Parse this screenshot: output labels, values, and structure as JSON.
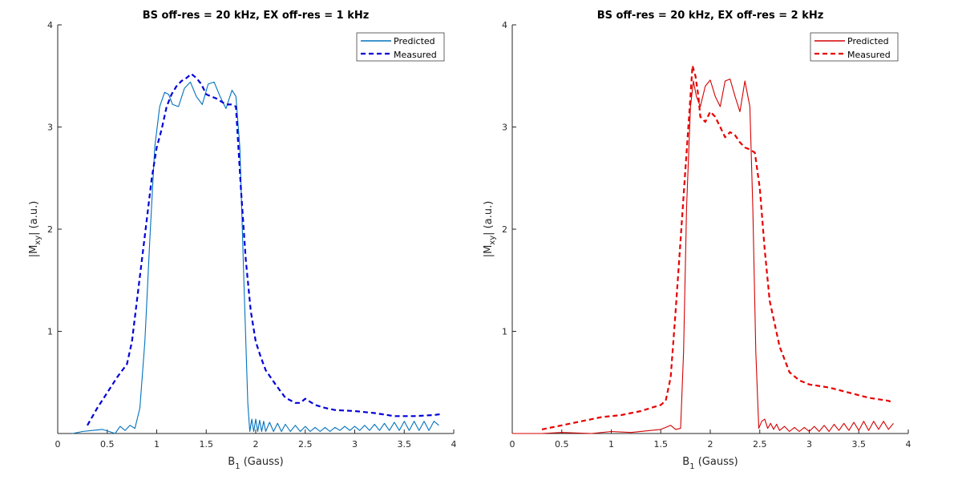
{
  "chart_data": [
    {
      "type": "line",
      "title": "BS off-res = 20 kHz, EX off-res = 1 kHz",
      "xlabel_main": "B",
      "xlabel_sub": "1",
      "xlabel_rest": " (Gauss)",
      "ylabel_main": "|M",
      "ylabel_sub": "xy",
      "ylabel_rest": "| (a.u.)",
      "xlim": [
        0,
        4
      ],
      "ylim": [
        0,
        4
      ],
      "xticks": [
        0,
        0.5,
        1,
        1.5,
        2,
        2.5,
        3,
        3.5,
        4
      ],
      "xtick_labels": [
        "0",
        "0.5",
        "1",
        "1.5",
        "2",
        "2.5",
        "3",
        "3.5",
        "4"
      ],
      "yticks": [
        1,
        2,
        3,
        4
      ],
      "ytick_labels": [
        "1",
        "2",
        "3",
        "4"
      ],
      "grid": false,
      "legend_position": "top-right",
      "series": [
        {
          "name": "Predicted",
          "color": "#0072bd",
          "style": "solid",
          "x": [
            0.15,
            0.25,
            0.35,
            0.45,
            0.52,
            0.58,
            0.63,
            0.68,
            0.73,
            0.78,
            0.83,
            0.88,
            0.93,
            0.98,
            1.03,
            1.08,
            1.12,
            1.16,
            1.22,
            1.28,
            1.34,
            1.4,
            1.46,
            1.52,
            1.58,
            1.64,
            1.7,
            1.76,
            1.8,
            1.84,
            1.88,
            1.92,
            1.94,
            1.96,
            1.98,
            2.0,
            2.02,
            2.04,
            2.06,
            2.08,
            2.1,
            2.14,
            2.18,
            2.22,
            2.26,
            2.3,
            2.35,
            2.4,
            2.45,
            2.5,
            2.55,
            2.6,
            2.65,
            2.7,
            2.75,
            2.8,
            2.85,
            2.9,
            2.95,
            3.0,
            3.05,
            3.1,
            3.15,
            3.2,
            3.25,
            3.3,
            3.35,
            3.4,
            3.45,
            3.5,
            3.55,
            3.6,
            3.65,
            3.7,
            3.75,
            3.8,
            3.85
          ],
          "y": [
            0.0,
            0.02,
            0.03,
            0.04,
            0.02,
            0.0,
            0.07,
            0.03,
            0.08,
            0.05,
            0.25,
            0.9,
            1.9,
            2.8,
            3.2,
            3.34,
            3.32,
            3.22,
            3.2,
            3.38,
            3.44,
            3.3,
            3.22,
            3.42,
            3.44,
            3.3,
            3.18,
            3.36,
            3.3,
            2.8,
            1.5,
            0.3,
            0.02,
            0.14,
            0.02,
            0.14,
            0.02,
            0.13,
            0.02,
            0.12,
            0.02,
            0.11,
            0.02,
            0.1,
            0.02,
            0.09,
            0.02,
            0.08,
            0.02,
            0.07,
            0.02,
            0.06,
            0.02,
            0.06,
            0.02,
            0.06,
            0.03,
            0.07,
            0.03,
            0.07,
            0.03,
            0.08,
            0.03,
            0.09,
            0.03,
            0.1,
            0.03,
            0.11,
            0.03,
            0.12,
            0.03,
            0.12,
            0.03,
            0.12,
            0.03,
            0.12,
            0.08
          ]
        },
        {
          "name": "Measured",
          "color": "#0000d8",
          "style": "dashed",
          "x": [
            0.3,
            0.4,
            0.5,
            0.6,
            0.7,
            0.75,
            0.8,
            0.85,
            0.9,
            0.95,
            1.0,
            1.05,
            1.1,
            1.15,
            1.2,
            1.25,
            1.3,
            1.35,
            1.4,
            1.45,
            1.5,
            1.55,
            1.6,
            1.65,
            1.7,
            1.75,
            1.8,
            1.85,
            1.9,
            1.95,
            2.0,
            2.05,
            2.1,
            2.2,
            2.3,
            2.4,
            2.45,
            2.5,
            2.55,
            2.6,
            2.7,
            2.8,
            3.0,
            3.2,
            3.4,
            3.6,
            3.8,
            3.87
          ],
          "y": [
            0.08,
            0.25,
            0.4,
            0.55,
            0.68,
            0.9,
            1.3,
            1.7,
            2.1,
            2.5,
            2.8,
            2.98,
            3.2,
            3.32,
            3.4,
            3.45,
            3.48,
            3.52,
            3.48,
            3.42,
            3.32,
            3.3,
            3.28,
            3.25,
            3.22,
            3.22,
            3.2,
            2.4,
            1.7,
            1.2,
            0.9,
            0.75,
            0.62,
            0.48,
            0.35,
            0.3,
            0.3,
            0.34,
            0.31,
            0.28,
            0.25,
            0.23,
            0.22,
            0.2,
            0.17,
            0.17,
            0.18,
            0.19
          ]
        }
      ]
    },
    {
      "type": "line",
      "title": "BS off-res = 20 kHz, EX off-res = 2 kHz",
      "xlabel_main": "B",
      "xlabel_sub": "1",
      "xlabel_rest": " (Gauss)",
      "ylabel_main": "|M",
      "ylabel_sub": "xy",
      "ylabel_rest": "| (a.u.)",
      "xlim": [
        0,
        4
      ],
      "ylim": [
        0,
        4
      ],
      "xticks": [
        0,
        0.5,
        1,
        1.5,
        2,
        2.5,
        3,
        3.5,
        4
      ],
      "xtick_labels": [
        "0",
        "0.5",
        "1",
        "1.5",
        "2",
        "2.5",
        "3",
        "3.5",
        "4"
      ],
      "yticks": [
        1,
        2,
        3,
        4
      ],
      "ytick_labels": [
        "1",
        "2",
        "3",
        "4"
      ],
      "grid": false,
      "legend_position": "top-right",
      "series": [
        {
          "name": "Predicted",
          "color": "#d40000",
          "style": "solid",
          "x": [
            0.0,
            0.3,
            0.5,
            0.8,
            1.0,
            1.2,
            1.4,
            1.5,
            1.55,
            1.6,
            1.65,
            1.7,
            1.73,
            1.76,
            1.8,
            1.83,
            1.86,
            1.9,
            1.95,
            2.0,
            2.05,
            2.1,
            2.15,
            2.2,
            2.25,
            2.3,
            2.35,
            2.4,
            2.43,
            2.46,
            2.49,
            2.52,
            2.55,
            2.58,
            2.61,
            2.64,
            2.67,
            2.7,
            2.75,
            2.8,
            2.85,
            2.9,
            2.95,
            3.0,
            3.05,
            3.1,
            3.15,
            3.2,
            3.25,
            3.3,
            3.35,
            3.4,
            3.45,
            3.5,
            3.55,
            3.6,
            3.65,
            3.7,
            3.75,
            3.8,
            3.85
          ],
          "y": [
            0.0,
            0.0,
            0.01,
            0.0,
            0.02,
            0.01,
            0.03,
            0.04,
            0.06,
            0.08,
            0.04,
            0.05,
            0.8,
            2.2,
            3.2,
            3.45,
            3.3,
            3.2,
            3.4,
            3.46,
            3.3,
            3.2,
            3.45,
            3.47,
            3.3,
            3.15,
            3.45,
            3.2,
            2.2,
            0.8,
            0.05,
            0.12,
            0.14,
            0.05,
            0.1,
            0.04,
            0.09,
            0.03,
            0.07,
            0.02,
            0.06,
            0.02,
            0.06,
            0.02,
            0.07,
            0.02,
            0.08,
            0.02,
            0.09,
            0.03,
            0.1,
            0.03,
            0.11,
            0.03,
            0.12,
            0.03,
            0.12,
            0.04,
            0.12,
            0.04,
            0.1
          ]
        },
        {
          "name": "Measured",
          "color": "#e80000",
          "style": "dashed",
          "x": [
            0.3,
            0.5,
            0.7,
            0.9,
            1.0,
            1.1,
            1.2,
            1.3,
            1.4,
            1.5,
            1.55,
            1.6,
            1.65,
            1.7,
            1.75,
            1.8,
            1.82,
            1.85,
            1.88,
            1.9,
            1.95,
            2.0,
            2.05,
            2.1,
            2.15,
            2.2,
            2.25,
            2.3,
            2.35,
            2.4,
            2.45,
            2.5,
            2.55,
            2.6,
            2.7,
            2.8,
            2.9,
            3.0,
            3.2,
            3.4,
            3.6,
            3.8,
            3.85
          ],
          "y": [
            0.04,
            0.08,
            0.12,
            0.16,
            0.17,
            0.18,
            0.2,
            0.22,
            0.25,
            0.28,
            0.32,
            0.55,
            1.2,
            1.9,
            2.6,
            3.3,
            3.6,
            3.5,
            3.3,
            3.1,
            3.05,
            3.15,
            3.1,
            3.0,
            2.9,
            2.95,
            2.92,
            2.85,
            2.8,
            2.78,
            2.75,
            2.4,
            1.8,
            1.3,
            0.85,
            0.6,
            0.52,
            0.48,
            0.45,
            0.4,
            0.35,
            0.32,
            0.3
          ]
        }
      ]
    }
  ]
}
